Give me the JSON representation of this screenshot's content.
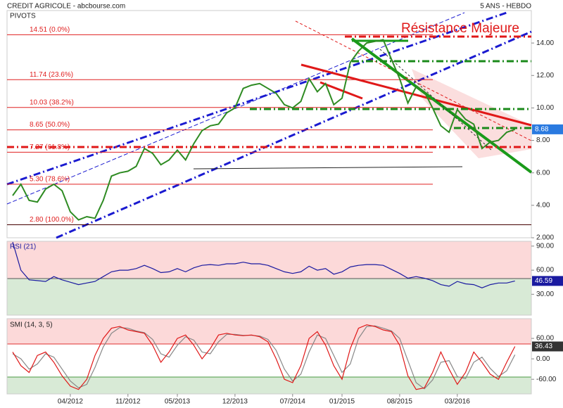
{
  "chart_data": [
    {
      "type": "line",
      "title": "CREDIT AGRICOLE - abcbourse.com",
      "subtitle": "5 ANS - HEBDO",
      "annotations": [
        "PIVOTS",
        "Résistance Majeure"
      ],
      "x": [
        "2011-09",
        "2011-10",
        "2011-11",
        "2011-12",
        "2012-01",
        "2012-02",
        "2012-03",
        "2012-04",
        "2012-05",
        "2012-06",
        "2012-07",
        "2012-08",
        "2012-09",
        "2012-10",
        "2012-11",
        "2012-12",
        "2013-01",
        "2013-02",
        "2013-03",
        "2013-04",
        "2013-05",
        "2013-06",
        "2013-07",
        "2013-08",
        "2013-09",
        "2013-10",
        "2013-11",
        "2013-12",
        "2014-01",
        "2014-02",
        "2014-03",
        "2014-04",
        "2014-05",
        "2014-06",
        "2014-07",
        "2014-08",
        "2014-09",
        "2014-10",
        "2014-11",
        "2014-12",
        "2015-01",
        "2015-02",
        "2015-03",
        "2015-04",
        "2015-05",
        "2015-06",
        "2015-07",
        "2015-08",
        "2015-09",
        "2015-10",
        "2015-11",
        "2015-12",
        "2016-01",
        "2016-02",
        "2016-03",
        "2016-04",
        "2016-05",
        "2016-06",
        "2016-07",
        "2016-08",
        "2016-09",
        "2016-10"
      ],
      "series": [
        {
          "color": "#2e8b22",
          "values": [
            4.6,
            5.3,
            4.3,
            4.2,
            5.0,
            5.3,
            4.9,
            3.6,
            3.1,
            3.3,
            3.2,
            4.3,
            5.8,
            6.0,
            6.1,
            6.4,
            7.5,
            7.2,
            6.5,
            6.8,
            7.4,
            6.8,
            7.8,
            8.6,
            8.9,
            9.0,
            9.7,
            10.0,
            11.2,
            11.4,
            11.5,
            11.2,
            10.9,
            10.2,
            10.0,
            10.4,
            11.8,
            11.0,
            11.5,
            10.2,
            10.6,
            12.8,
            13.5,
            14.0,
            14.1,
            14.2,
            13.0,
            11.8,
            10.3,
            11.3,
            11.0,
            10.0,
            8.9,
            8.5,
            9.9,
            9.3,
            9.0,
            7.5,
            7.9,
            8.0,
            8.5,
            8.68
          ]
        }
      ],
      "levels": [
        {
          "value": 14.51,
          "label": "14.51 (0.0%)"
        },
        {
          "value": 11.74,
          "label": "11.74 (23.6%)"
        },
        {
          "value": 10.03,
          "label": "10.03 (38.2%)"
        },
        {
          "value": 8.65,
          "label": "8.65 (50.0%)"
        },
        {
          "value": 7.27,
          "label": "7.27 (61.8%)"
        },
        {
          "value": 5.3,
          "label": "5.30 (78.6%)"
        },
        {
          "value": 2.8,
          "label": "2.80 (100.0%)"
        }
      ],
      "level_color": "#e02020",
      "ylim": [
        2,
        16
      ],
      "yticks": [
        {
          "value": 14,
          "label": "14.00"
        },
        {
          "value": 12,
          "label": "12.00"
        },
        {
          "value": 10,
          "label": "10.00"
        },
        {
          "value": 8,
          "label": "8.00"
        },
        {
          "value": 6,
          "label": "6.00"
        },
        {
          "value": 4,
          "label": "4.00"
        },
        {
          "value": 2,
          "label": "2.000"
        }
      ]
    },
    {
      "type": "line",
      "title": "RSI (21)",
      "x": [
        "2011-09",
        "2011-10",
        "2011-11",
        "2011-12",
        "2012-01",
        "2012-02",
        "2012-03",
        "2012-04",
        "2012-05",
        "2012-06",
        "2012-07",
        "2012-08",
        "2012-09",
        "2012-10",
        "2012-11",
        "2012-12",
        "2013-01",
        "2013-02",
        "2013-03",
        "2013-04",
        "2013-05",
        "2013-06",
        "2013-07",
        "2013-08",
        "2013-09",
        "2013-10",
        "2013-11",
        "2013-12",
        "2014-01",
        "2014-02",
        "2014-03",
        "2014-04",
        "2014-05",
        "2014-06",
        "2014-07",
        "2014-08",
        "2014-09",
        "2014-10",
        "2014-11",
        "2014-12",
        "2015-01",
        "2015-02",
        "2015-03",
        "2015-04",
        "2015-05",
        "2015-06",
        "2015-07",
        "2015-08",
        "2015-09",
        "2015-10",
        "2015-11",
        "2015-12",
        "2016-01",
        "2016-02",
        "2016-03",
        "2016-04",
        "2016-05",
        "2016-06",
        "2016-07",
        "2016-08",
        "2016-09",
        "2016-10"
      ],
      "series": [
        {
          "color": "#1a1aa0",
          "values": [
            95,
            60,
            48,
            47,
            46,
            52,
            48,
            45,
            42,
            44,
            46,
            52,
            58,
            60,
            60,
            62,
            66,
            62,
            57,
            58,
            62,
            58,
            63,
            66,
            67,
            66,
            68,
            68,
            70,
            68,
            68,
            66,
            62,
            58,
            56,
            58,
            65,
            60,
            62,
            55,
            58,
            64,
            66,
            67,
            67,
            66,
            61,
            56,
            50,
            52,
            50,
            47,
            42,
            40,
            46,
            43,
            42,
            38,
            42,
            44,
            44,
            46.59
          ]
        }
      ],
      "ylim": [
        4,
        96
      ],
      "yticks": [
        {
          "value": 90,
          "label": "90.00"
        },
        {
          "value": 60,
          "label": "60.00"
        },
        {
          "value": 30,
          "label": "30.00"
        }
      ]
    },
    {
      "type": "line",
      "title": "SMI (14, 3, 5)",
      "x": [
        "2011-09",
        "2011-10",
        "2011-11",
        "2011-12",
        "2012-01",
        "2012-02",
        "2012-03",
        "2012-04",
        "2012-05",
        "2012-06",
        "2012-07",
        "2012-08",
        "2012-09",
        "2012-10",
        "2012-11",
        "2012-12",
        "2013-01",
        "2013-02",
        "2013-03",
        "2013-04",
        "2013-05",
        "2013-06",
        "2013-07",
        "2013-08",
        "2013-09",
        "2013-10",
        "2013-11",
        "2013-12",
        "2014-01",
        "2014-02",
        "2014-03",
        "2014-04",
        "2014-05",
        "2014-06",
        "2014-07",
        "2014-08",
        "2014-09",
        "2014-10",
        "2014-11",
        "2014-12",
        "2015-01",
        "2015-02",
        "2015-03",
        "2015-04",
        "2015-05",
        "2015-06",
        "2015-07",
        "2015-08",
        "2015-09",
        "2015-10",
        "2015-11",
        "2015-12",
        "2016-01",
        "2016-02",
        "2016-03",
        "2016-04",
        "2016-05",
        "2016-06",
        "2016-07",
        "2016-08",
        "2016-09",
        "2016-10"
      ],
      "series": [
        {
          "color": "#888888",
          "values": [
            15,
            0,
            -30,
            -15,
            15,
            5,
            -30,
            -65,
            -85,
            -75,
            -25,
            35,
            75,
            92,
            90,
            82,
            77,
            57,
            15,
            5,
            40,
            65,
            55,
            20,
            15,
            50,
            72,
            72,
            69,
            69,
            67,
            57,
            25,
            -30,
            -65,
            -45,
            20,
            70,
            60,
            10,
            -40,
            -15,
            60,
            95,
            97,
            90,
            82,
            60,
            -5,
            -70,
            -88,
            -62,
            -10,
            -5,
            -52,
            -58,
            -10,
            5,
            -28,
            -52,
            -35,
            12
          ]
        },
        {
          "color": "#e01818",
          "values": [
            20,
            -20,
            -40,
            10,
            20,
            -10,
            -50,
            -80,
            -90,
            -60,
            10,
            60,
            90,
            95,
            85,
            80,
            75,
            40,
            -10,
            20,
            60,
            70,
            40,
            0,
            30,
            70,
            75,
            70,
            68,
            70,
            65,
            50,
            0,
            -60,
            -70,
            -20,
            60,
            80,
            40,
            -20,
            -60,
            30,
            90,
            100,
            95,
            85,
            80,
            40,
            -50,
            -90,
            -85,
            -40,
            20,
            -30,
            -75,
            -40,
            20,
            -10,
            -45,
            -60,
            -10,
            36.43
          ]
        }
      ],
      "ylim": [
        -103,
        118
      ],
      "yticks": [
        {
          "value": 60,
          "label": "60.00"
        },
        {
          "value": 0,
          "label": "0.00"
        },
        {
          "value": -60,
          "label": "-60.00"
        }
      ],
      "xticks": [
        {
          "value": "2012-04",
          "label": "04/2012"
        },
        {
          "value": "2012-11",
          "label": "11/2012"
        },
        {
          "value": "2013-05",
          "label": "05/2013"
        },
        {
          "value": "2013-12",
          "label": "12/2013"
        },
        {
          "value": "2014-07",
          "label": "07/2014"
        },
        {
          "value": "2015-01",
          "label": "01/2015"
        },
        {
          "value": "2015-08",
          "label": "08/2015"
        },
        {
          "value": "2016-03",
          "label": "03/2016"
        }
      ]
    }
  ]
}
